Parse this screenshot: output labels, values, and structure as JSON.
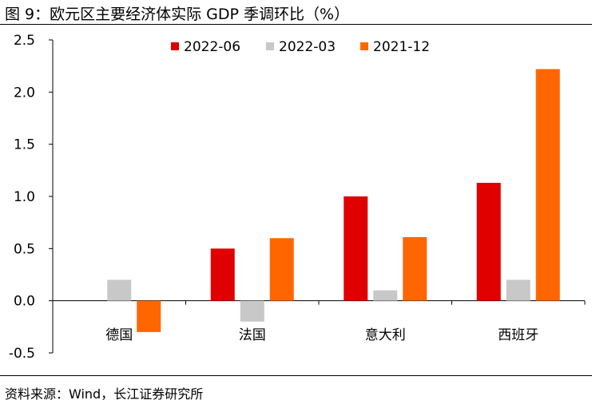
{
  "title": "图 9：欧元区主要经济体实际 GDP 季调环比（%）",
  "source": "资料来源：Wind，长江证券研究所",
  "chart_data": {
    "type": "bar",
    "categories": [
      "德国",
      "法国",
      "意大利",
      "西班牙"
    ],
    "series": [
      {
        "name": "2022-06",
        "values": [
          0.0,
          0.5,
          1.0,
          1.13
        ],
        "color": "#e00000"
      },
      {
        "name": "2022-03",
        "values": [
          0.2,
          -0.2,
          0.1,
          0.2
        ],
        "color": "#c8c8c8"
      },
      {
        "name": "2021-12",
        "values": [
          -0.3,
          0.6,
          0.61,
          2.22
        ],
        "color": "#ff6600"
      }
    ],
    "ylim": [
      -0.5,
      2.5
    ],
    "yticks": [
      "-0.5",
      "0.0",
      "0.5",
      "1.0",
      "1.5",
      "2.0",
      "2.5"
    ],
    "grid": false,
    "legend": "top-center"
  }
}
